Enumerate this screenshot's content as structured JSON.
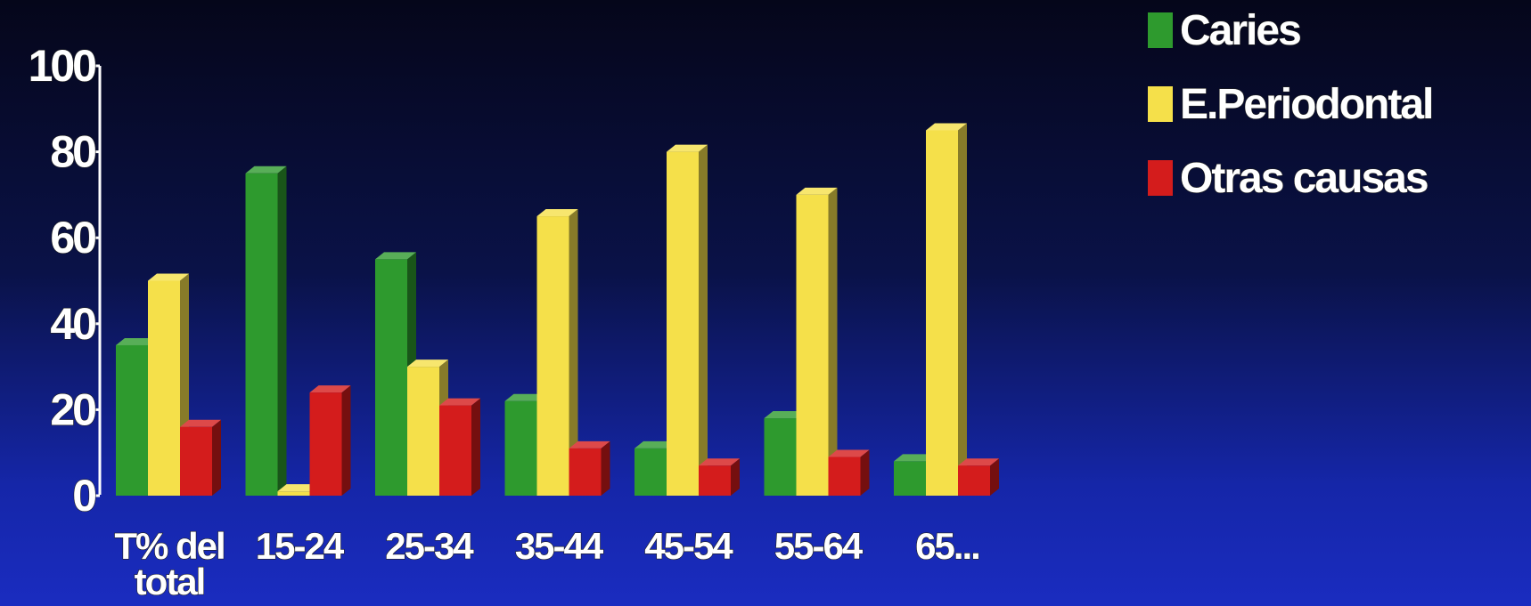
{
  "chart_data": {
    "type": "bar",
    "title": "",
    "xlabel": "",
    "ylabel": "",
    "ylim": [
      0,
      100
    ],
    "yticks": [
      "0",
      "20",
      "40",
      "60",
      "80",
      "100"
    ],
    "categories": [
      [
        "T% del",
        "total"
      ],
      [
        "15-24"
      ],
      [
        "25-34"
      ],
      [
        "35-44"
      ],
      [
        "45-54"
      ],
      [
        "55-64"
      ],
      [
        "65..."
      ]
    ],
    "series": [
      {
        "name": "Caries",
        "color": "#2e9a2e",
        "values": [
          35,
          75,
          55,
          22,
          11,
          18,
          8
        ]
      },
      {
        "name": "E.Periodontal",
        "color": "#f5e04a",
        "values": [
          50,
          1,
          30,
          65,
          80,
          70,
          85
        ]
      },
      {
        "name": "Otras causas",
        "color": "#d41c1c",
        "values": [
          16,
          24,
          21,
          11,
          7,
          9,
          7
        ]
      }
    ],
    "legend_position": "top-right",
    "style": "3d"
  }
}
